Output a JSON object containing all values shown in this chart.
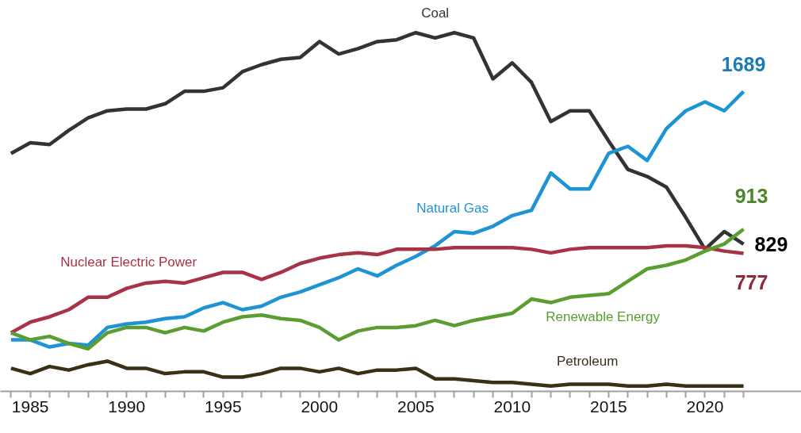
{
  "chart_data": {
    "type": "line",
    "x": [
      1984,
      1985,
      1986,
      1987,
      1988,
      1989,
      1990,
      1991,
      1992,
      1993,
      1994,
      1995,
      1996,
      1997,
      1998,
      1999,
      2000,
      2001,
      2002,
      2003,
      2004,
      2005,
      2006,
      2007,
      2008,
      2009,
      2010,
      2011,
      2012,
      2013,
      2014,
      2015,
      2016,
      2017,
      2018,
      2019,
      2020,
      2021,
      2022
    ],
    "series": [
      {
        "name": "Coal",
        "color": "#333333",
        "values": [
          1340,
          1400,
          1390,
          1470,
          1540,
          1580,
          1590,
          1590,
          1620,
          1690,
          1690,
          1710,
          1800,
          1840,
          1870,
          1880,
          1970,
          1900,
          1930,
          1970,
          1980,
          2020,
          1990,
          2020,
          1990,
          1760,
          1850,
          1740,
          1520,
          1580,
          1580,
          1410,
          1250,
          1210,
          1150,
          980,
          800,
          900,
          829
        ],
        "value_labels": [
          null,
          null,
          null,
          null,
          null,
          null,
          null,
          null,
          null,
          null,
          null,
          null,
          null,
          null,
          null,
          null,
          null,
          null,
          null,
          null,
          null,
          null,
          null,
          null,
          null,
          null,
          null,
          null,
          null,
          null,
          null,
          null,
          null,
          null,
          null,
          null,
          null,
          null,
          "829"
        ]
      },
      {
        "name": "Natural Gas",
        "color": "#1e93d6",
        "values": [
          290,
          290,
          250,
          270,
          260,
          360,
          380,
          390,
          410,
          420,
          470,
          500,
          460,
          480,
          530,
          560,
          600,
          640,
          690,
          650,
          710,
          760,
          820,
          900,
          890,
          930,
          990,
          1020,
          1230,
          1140,
          1140,
          1340,
          1380,
          1300,
          1480,
          1580,
          1630,
          1580,
          1689
        ],
        "value_labels": [
          null,
          null,
          null,
          null,
          null,
          null,
          null,
          null,
          null,
          null,
          null,
          null,
          null,
          null,
          null,
          null,
          null,
          null,
          null,
          null,
          null,
          null,
          null,
          null,
          null,
          null,
          null,
          null,
          null,
          null,
          null,
          null,
          null,
          null,
          null,
          null,
          null,
          null,
          "1689"
        ]
      },
      {
        "name": "Nuclear Electric Power",
        "color": "#a83246",
        "values": [
          330,
          390,
          420,
          460,
          530,
          530,
          580,
          610,
          620,
          610,
          640,
          670,
          670,
          630,
          670,
          720,
          750,
          770,
          780,
          770,
          800,
          800,
          800,
          810,
          810,
          810,
          810,
          800,
          780,
          800,
          810,
          810,
          810,
          810,
          820,
          820,
          810,
          790,
          777
        ],
        "value_labels": [
          null,
          null,
          null,
          null,
          null,
          null,
          null,
          null,
          null,
          null,
          null,
          null,
          null,
          null,
          null,
          null,
          null,
          null,
          null,
          null,
          null,
          null,
          null,
          null,
          null,
          null,
          null,
          null,
          null,
          null,
          null,
          null,
          null,
          null,
          null,
          null,
          null,
          null,
          "777"
        ]
      },
      {
        "name": "Renewable Energy",
        "color": "#5a9e32",
        "values": [
          330,
          290,
          310,
          270,
          240,
          330,
          360,
          360,
          330,
          360,
          340,
          390,
          420,
          430,
          410,
          400,
          360,
          290,
          340,
          360,
          360,
          370,
          400,
          370,
          400,
          420,
          440,
          520,
          500,
          530,
          540,
          550,
          620,
          690,
          710,
          740,
          790,
          830,
          913
        ],
        "value_labels": [
          null,
          null,
          null,
          null,
          null,
          null,
          null,
          null,
          null,
          null,
          null,
          null,
          null,
          null,
          null,
          null,
          null,
          null,
          null,
          null,
          null,
          null,
          null,
          null,
          null,
          null,
          null,
          null,
          null,
          null,
          null,
          null,
          null,
          null,
          null,
          null,
          null,
          null,
          "913"
        ]
      },
      {
        "name": "Petroleum",
        "color": "#3a3018",
        "values": [
          130,
          100,
          140,
          120,
          150,
          170,
          130,
          130,
          100,
          110,
          110,
          80,
          80,
          100,
          130,
          130,
          110,
          130,
          100,
          120,
          120,
          130,
          70,
          70,
          60,
          50,
          50,
          40,
          30,
          40,
          40,
          40,
          30,
          30,
          40,
          30,
          30,
          30,
          30
        ]
      }
    ],
    "xlim": [
      1983.45,
      2025
    ],
    "xticks": [
      {
        "value": 1984,
        "label": null
      },
      1985,
      {
        "value": 1986,
        "label": null
      },
      {
        "value": 1987,
        "label": null
      },
      {
        "value": 1988,
        "label": null
      },
      {
        "value": 1989,
        "label": null
      },
      1990,
      {
        "value": 1991,
        "label": null
      },
      {
        "value": 1992,
        "label": null
      },
      {
        "value": 1993,
        "label": null
      },
      {
        "value": 1994,
        "label": null
      },
      1995,
      {
        "value": 1996,
        "label": null
      },
      {
        "value": 1997,
        "label": null
      },
      {
        "value": 1998,
        "label": null
      },
      {
        "value": 1999,
        "label": null
      },
      2000,
      {
        "value": 2001,
        "label": null
      },
      {
        "value": 2002,
        "label": null
      },
      {
        "value": 2003,
        "label": null
      },
      {
        "value": 2004,
        "label": null
      },
      2005,
      {
        "value": 2006,
        "label": null
      },
      {
        "value": 2007,
        "label": null
      },
      {
        "value": 2008,
        "label": null
      },
      {
        "value": 2009,
        "label": null
      },
      2010,
      {
        "value": 2011,
        "label": null
      },
      {
        "value": 2012,
        "label": null
      },
      {
        "value": 2013,
        "label": null
      },
      {
        "value": 2014,
        "label": null
      },
      2015,
      {
        "value": 2016,
        "label": null
      },
      {
        "value": 2017,
        "label": null
      },
      {
        "value": 2018,
        "label": null
      },
      {
        "value": 2019,
        "label": null
      },
      2020,
      {
        "value": 2021,
        "label": null
      },
      {
        "value": 2022,
        "label": null
      }
    ],
    "tick_labels": "x",
    "grid": false,
    "marker": "none",
    "line_style": "solid"
  }
}
